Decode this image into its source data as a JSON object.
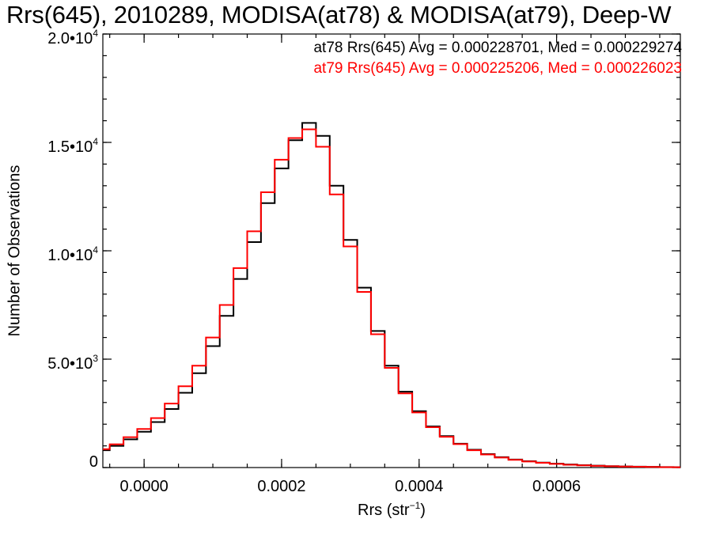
{
  "chart_data": {
    "type": "histogram",
    "title": "Rrs(645), 2010289, MODISA(at78) & MODISA(at79), Deep-W",
    "xlabel_base": "Rrs (str",
    "xlabel_sup": "−1",
    "xlabel_end": ")",
    "ylabel": "Number of Observations",
    "xlim": [
      -6e-05,
      0.00078
    ],
    "ylim": [
      0,
      20000
    ],
    "yticks": [
      {
        "value": 0,
        "mantissa": "0",
        "exp": ""
      },
      {
        "value": 5000,
        "mantissa": "5.0•10",
        "exp": "3"
      },
      {
        "value": 10000,
        "mantissa": "1.0•10",
        "exp": "4"
      },
      {
        "value": 15000,
        "mantissa": "1.5•10",
        "exp": "4"
      },
      {
        "value": 20000,
        "mantissa": "2.0•10",
        "exp": "4"
      }
    ],
    "xticks": [
      {
        "value": 0.0,
        "label": "0.0000"
      },
      {
        "value": 0.0002,
        "label": "0.0002"
      },
      {
        "value": 0.0004,
        "label": "0.0004"
      },
      {
        "value": 0.0006,
        "label": "0.0006"
      }
    ],
    "annotations": [
      "at78 Rrs(645) Avg = 0.000228701, Med = 0.000229274",
      "at79 Rrs(645) Avg = 0.000225206, Med = 0.000226023"
    ],
    "series": [
      {
        "name": "at78",
        "color": "#000000",
        "x": [
          -6e-05,
          -4e-05,
          -2e-05,
          0.0,
          2e-05,
          4e-05,
          6e-05,
          8e-05,
          0.0001,
          0.00012,
          0.00014,
          0.00016,
          0.00018,
          0.0002,
          0.00022,
          0.00024,
          0.00026,
          0.00028,
          0.0003,
          0.00032,
          0.00034,
          0.00036,
          0.00038,
          0.0004,
          0.00042,
          0.00044,
          0.00046,
          0.00048,
          0.0005,
          0.00052,
          0.00054,
          0.00056,
          0.00058,
          0.0006,
          0.00062,
          0.00064,
          0.00066,
          0.00068,
          0.0007,
          0.00072,
          0.00074,
          0.00076,
          0.00078
        ],
        "y": [
          800,
          1000,
          1300,
          1650,
          2100,
          2700,
          3450,
          4350,
          5600,
          7000,
          8700,
          10400,
          12200,
          13800,
          15100,
          15900,
          15300,
          13000,
          10500,
          8300,
          6300,
          4700,
          3500,
          2600,
          1900,
          1450,
          1100,
          820,
          620,
          480,
          370,
          290,
          230,
          180,
          140,
          110,
          85,
          65,
          50,
          40,
          30,
          22,
          16
        ]
      },
      {
        "name": "at79",
        "color": "#ff0000",
        "x": [
          -6e-05,
          -4e-05,
          -2e-05,
          0.0,
          2e-05,
          4e-05,
          6e-05,
          8e-05,
          0.0001,
          0.00012,
          0.00014,
          0.00016,
          0.00018,
          0.0002,
          0.00022,
          0.00024,
          0.00026,
          0.00028,
          0.0003,
          0.00032,
          0.00034,
          0.00036,
          0.00038,
          0.0004,
          0.00042,
          0.00044,
          0.00046,
          0.00048,
          0.0005,
          0.00052,
          0.00054,
          0.00056,
          0.00058,
          0.0006,
          0.00062,
          0.00064,
          0.00066,
          0.00068,
          0.0007,
          0.00072,
          0.00074,
          0.00076,
          0.00078
        ],
        "y": [
          850,
          1070,
          1400,
          1780,
          2280,
          2950,
          3750,
          4700,
          6000,
          7500,
          9200,
          10900,
          12700,
          14200,
          15200,
          15600,
          14800,
          12600,
          10200,
          8100,
          6150,
          4600,
          3420,
          2540,
          1860,
          1420,
          1080,
          800,
          600,
          460,
          355,
          280,
          220,
          170,
          130,
          100,
          78,
          60,
          46,
          36,
          28,
          20,
          14
        ]
      }
    ]
  }
}
